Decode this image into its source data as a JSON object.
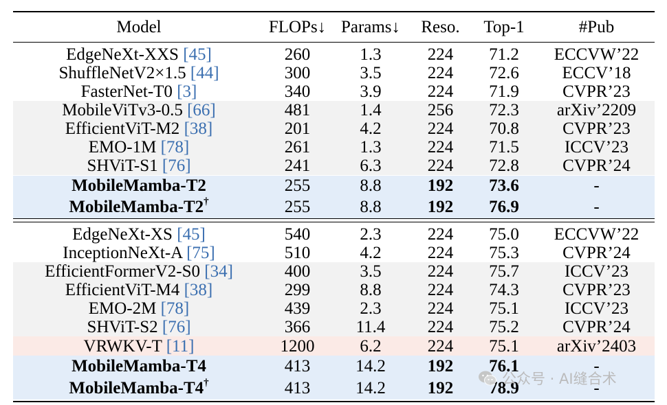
{
  "table": {
    "columns": [
      "Model",
      "FLOPs↓",
      "Params↓",
      "Reso.",
      "Top-1",
      "#Pub"
    ],
    "groups": [
      {
        "rows": [
          {
            "model": "EdgeNeXt-XXS",
            "ref": "45",
            "dagger": false,
            "flops": "260",
            "params": "1.3",
            "reso": "224",
            "top1": "71.2",
            "pub": "ECCVW’22",
            "bg": "white",
            "bold": false
          },
          {
            "model": "ShuffleNetV2×1.5",
            "ref": "44",
            "dagger": false,
            "flops": "300",
            "params": "3.5",
            "reso": "224",
            "top1": "72.6",
            "pub": "ECCV’18",
            "bg": "white",
            "bold": false
          },
          {
            "model": "FasterNet-T0",
            "ref": "3",
            "dagger": false,
            "flops": "340",
            "params": "3.9",
            "reso": "224",
            "top1": "71.9",
            "pub": "CVPR’23",
            "bg": "white",
            "bold": false
          },
          {
            "model": "MobileViTv3-0.5",
            "ref": "66",
            "dagger": false,
            "flops": "481",
            "params": "1.4",
            "reso": "256",
            "top1": "72.3",
            "pub": "arXiv’2209",
            "bg": "gray",
            "bold": false
          },
          {
            "model": "EfficientViT-M2",
            "ref": "38",
            "dagger": false,
            "flops": "201",
            "params": "4.2",
            "reso": "224",
            "top1": "70.8",
            "pub": "CVPR’23",
            "bg": "gray",
            "bold": false
          },
          {
            "model": "EMO-1M",
            "ref": "78",
            "dagger": false,
            "flops": "261",
            "params": "1.3",
            "reso": "224",
            "top1": "71.5",
            "pub": "ICCV’23",
            "bg": "gray",
            "bold": false
          },
          {
            "model": "SHViT-S1",
            "ref": "76",
            "dagger": false,
            "flops": "241",
            "params": "6.3",
            "reso": "224",
            "top1": "72.8",
            "pub": "CVPR’24",
            "bg": "gray",
            "bold": false
          },
          {
            "model": "MobileMamba-T2",
            "ref": "",
            "dagger": false,
            "flops": "255",
            "params": "8.8",
            "reso": "192",
            "top1": "73.6",
            "pub": "-",
            "bg": "blue",
            "bold": true
          },
          {
            "model": "MobileMamba-T2",
            "ref": "",
            "dagger": true,
            "flops": "255",
            "params": "8.8",
            "reso": "192",
            "top1": "76.9",
            "pub": "-",
            "bg": "blue",
            "bold": true
          }
        ]
      },
      {
        "rows": [
          {
            "model": "EdgeNeXt-XS",
            "ref": "45",
            "dagger": false,
            "flops": "540",
            "params": "2.3",
            "reso": "224",
            "top1": "75.0",
            "pub": "ECCVW’22",
            "bg": "white",
            "bold": false
          },
          {
            "model": "InceptionNeXt-A",
            "ref": "75",
            "dagger": false,
            "flops": "510",
            "params": "4.2",
            "reso": "224",
            "top1": "75.3",
            "pub": "CVPR’24",
            "bg": "white",
            "bold": false
          },
          {
            "model": "EfficientFormerV2-S0",
            "ref": "34",
            "dagger": false,
            "flops": "400",
            "params": "3.5",
            "reso": "224",
            "top1": "75.7",
            "pub": "ICCV’23",
            "bg": "gray",
            "bold": false
          },
          {
            "model": "EfficientViT-M4",
            "ref": "38",
            "dagger": false,
            "flops": "299",
            "params": "8.8",
            "reso": "224",
            "top1": "74.3",
            "pub": "CVPR’23",
            "bg": "gray",
            "bold": false
          },
          {
            "model": "EMO-2M",
            "ref": "78",
            "dagger": false,
            "flops": "439",
            "params": "2.3",
            "reso": "224",
            "top1": "75.1",
            "pub": "ICCV’23",
            "bg": "gray",
            "bold": false
          },
          {
            "model": "SHViT-S2",
            "ref": "76",
            "dagger": false,
            "flops": "366",
            "params": "11.4",
            "reso": "224",
            "top1": "75.2",
            "pub": "CVPR’24",
            "bg": "gray",
            "bold": false
          },
          {
            "model": "VRWKV-T",
            "ref": "11",
            "dagger": false,
            "flops": "1200",
            "params": "6.2",
            "reso": "224",
            "top1": "75.1",
            "pub": "arXiv’2403",
            "bg": "pink",
            "bold": false
          },
          {
            "model": "MobileMamba-T4",
            "ref": "",
            "dagger": false,
            "flops": "413",
            "params": "14.2",
            "reso": "192",
            "top1": "76.1",
            "pub": "-",
            "bg": "blue",
            "bold": true
          },
          {
            "model": "MobileMamba-T4",
            "ref": "",
            "dagger": true,
            "flops": "413",
            "params": "14.2",
            "reso": "192",
            "top1": "78.9",
            "pub": "-",
            "bg": "blue",
            "bold": true
          }
        ]
      }
    ]
  },
  "watermark": {
    "text": "公众号 · AI缝合术",
    "icon": "wechat-icon"
  },
  "colors": {
    "ref_link": "#3b6fb0",
    "gray_row": "#f2f2f2",
    "blue_row": "#e3edf9",
    "pink_row": "#fbeae6"
  }
}
